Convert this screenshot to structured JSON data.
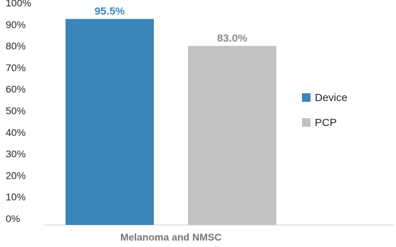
{
  "chart_data": {
    "type": "bar",
    "categories": [
      "Melanoma and NMSC"
    ],
    "series": [
      {
        "name": "Device",
        "values": [
          95.5
        ],
        "color": "#3A85BA",
        "label_color": "#3A85BA",
        "label": "95.5%"
      },
      {
        "name": "PCP",
        "values": [
          83.0
        ],
        "color": "#C2C2C2",
        "label_color": "#8C8C8C",
        "label": "83.0%"
      }
    ],
    "ylim": [
      0,
      100
    ],
    "yticks": [
      {
        "value": 0,
        "label": "0%"
      },
      {
        "value": 10,
        "label": "10%"
      },
      {
        "value": 20,
        "label": "20%"
      },
      {
        "value": 30,
        "label": "30%"
      },
      {
        "value": 40,
        "label": "40%"
      },
      {
        "value": 50,
        "label": "50%"
      },
      {
        "value": 60,
        "label": "60%"
      },
      {
        "value": 70,
        "label": "70%"
      },
      {
        "value": 80,
        "label": "80%"
      },
      {
        "value": 90,
        "label": "90%"
      },
      {
        "value": 100,
        "label": "100%"
      }
    ],
    "title": "",
    "xlabel": "",
    "ylabel": "",
    "grid": false,
    "legend_position": "right"
  }
}
